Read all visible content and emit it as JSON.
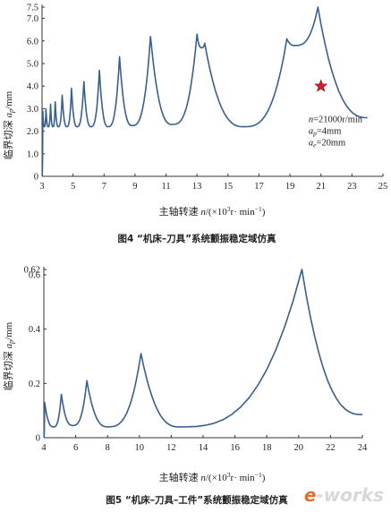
{
  "chart_data": [
    {
      "type": "line",
      "caption": "图4 “机床–刀具”系统颤振稳定域仿真",
      "xlabel": "主轴转速 n/(×10³r· min⁻¹)",
      "ylabel": "临界切深 ap/mm",
      "xlim": [
        3,
        25
      ],
      "ylim": [
        0,
        7.5
      ],
      "xticks": [
        "3",
        "5",
        "7",
        "9",
        "11",
        "13",
        "15",
        "17",
        "19",
        "21",
        "23",
        "25"
      ],
      "yticks": [
        "7.5",
        "7.0",
        "6.0",
        "5.0",
        "4.0",
        "3.0",
        "2.0",
        "1.0",
        "0"
      ],
      "grid": false,
      "series": [
        {
          "color": "#3a5f8f",
          "peaks": [
            {
              "x": 3.05,
              "y": 2.9
            },
            {
              "x": 3.25,
              "y": 3.0
            },
            {
              "x": 3.55,
              "y": 3.2
            },
            {
              "x": 3.85,
              "y": 3.3
            },
            {
              "x": 4.3,
              "y": 3.6
            },
            {
              "x": 4.9,
              "y": 3.9
            },
            {
              "x": 5.7,
              "y": 4.2
            },
            {
              "x": 6.7,
              "y": 4.7
            },
            {
              "x": 8.0,
              "y": 5.3
            },
            {
              "x": 10.0,
              "y": 6.2
            },
            {
              "x": 13.0,
              "y": 6.3
            },
            {
              "x": 13.5,
              "y": 5.9
            },
            {
              "x": 18.8,
              "y": 6.1
            },
            {
              "x": 20.8,
              "y": 7.5
            }
          ],
          "valleys": [
            {
              "x": 3.15,
              "y": 2.2
            },
            {
              "x": 3.4,
              "y": 2.2
            },
            {
              "x": 3.7,
              "y": 2.2
            },
            {
              "x": 4.05,
              "y": 2.2
            },
            {
              "x": 4.6,
              "y": 2.2
            },
            {
              "x": 5.25,
              "y": 2.2
            },
            {
              "x": 6.15,
              "y": 2.2
            },
            {
              "x": 7.25,
              "y": 2.2
            },
            {
              "x": 8.8,
              "y": 2.25
            },
            {
              "x": 11.4,
              "y": 2.3
            },
            {
              "x": 13.3,
              "y": 5.7
            },
            {
              "x": 16.0,
              "y": 2.2
            },
            {
              "x": 19.3,
              "y": 5.8
            }
          ],
          "end": {
            "x": 24.0,
            "y": 2.6
          }
        }
      ],
      "marker": {
        "shape": "star",
        "x": 21.0,
        "y": 4.0,
        "color": "#d0202a"
      },
      "annotations": [
        "n=21000r/min",
        "ap=4mm",
        "ae=20mm"
      ]
    },
    {
      "type": "line",
      "caption": "图5 “机床–刀具–工件”系统颤振稳定域仿真",
      "xlabel": "主轴转速 n/(×10³r· min⁻¹)",
      "ylabel": "临界切深 ap/mm",
      "xlim": [
        4,
        24
      ],
      "ylim": [
        0,
        0.62
      ],
      "xticks": [
        "4",
        "6",
        "8",
        "10",
        "12",
        "14",
        "16",
        "18",
        "20",
        "22",
        "24"
      ],
      "yticks": [
        "0.62",
        "0.6",
        "0.4",
        "0.2",
        "0"
      ],
      "grid": false,
      "series": [
        {
          "color": "#3a5f8f",
          "peaks": [
            {
              "x": 4.05,
              "y": 0.13
            },
            {
              "x": 5.1,
              "y": 0.16
            },
            {
              "x": 6.7,
              "y": 0.21
            },
            {
              "x": 10.1,
              "y": 0.31
            },
            {
              "x": 20.2,
              "y": 0.62
            }
          ],
          "valleys": [
            {
              "x": 4.6,
              "y": 0.04
            },
            {
              "x": 5.8,
              "y": 0.045
            },
            {
              "x": 8.0,
              "y": 0.04
            },
            {
              "x": 12.5,
              "y": 0.04
            }
          ],
          "end": {
            "x": 24.0,
            "y": 0.085
          }
        }
      ]
    }
  ],
  "watermark": {
    "prefix": "e",
    "rest": "-works"
  }
}
